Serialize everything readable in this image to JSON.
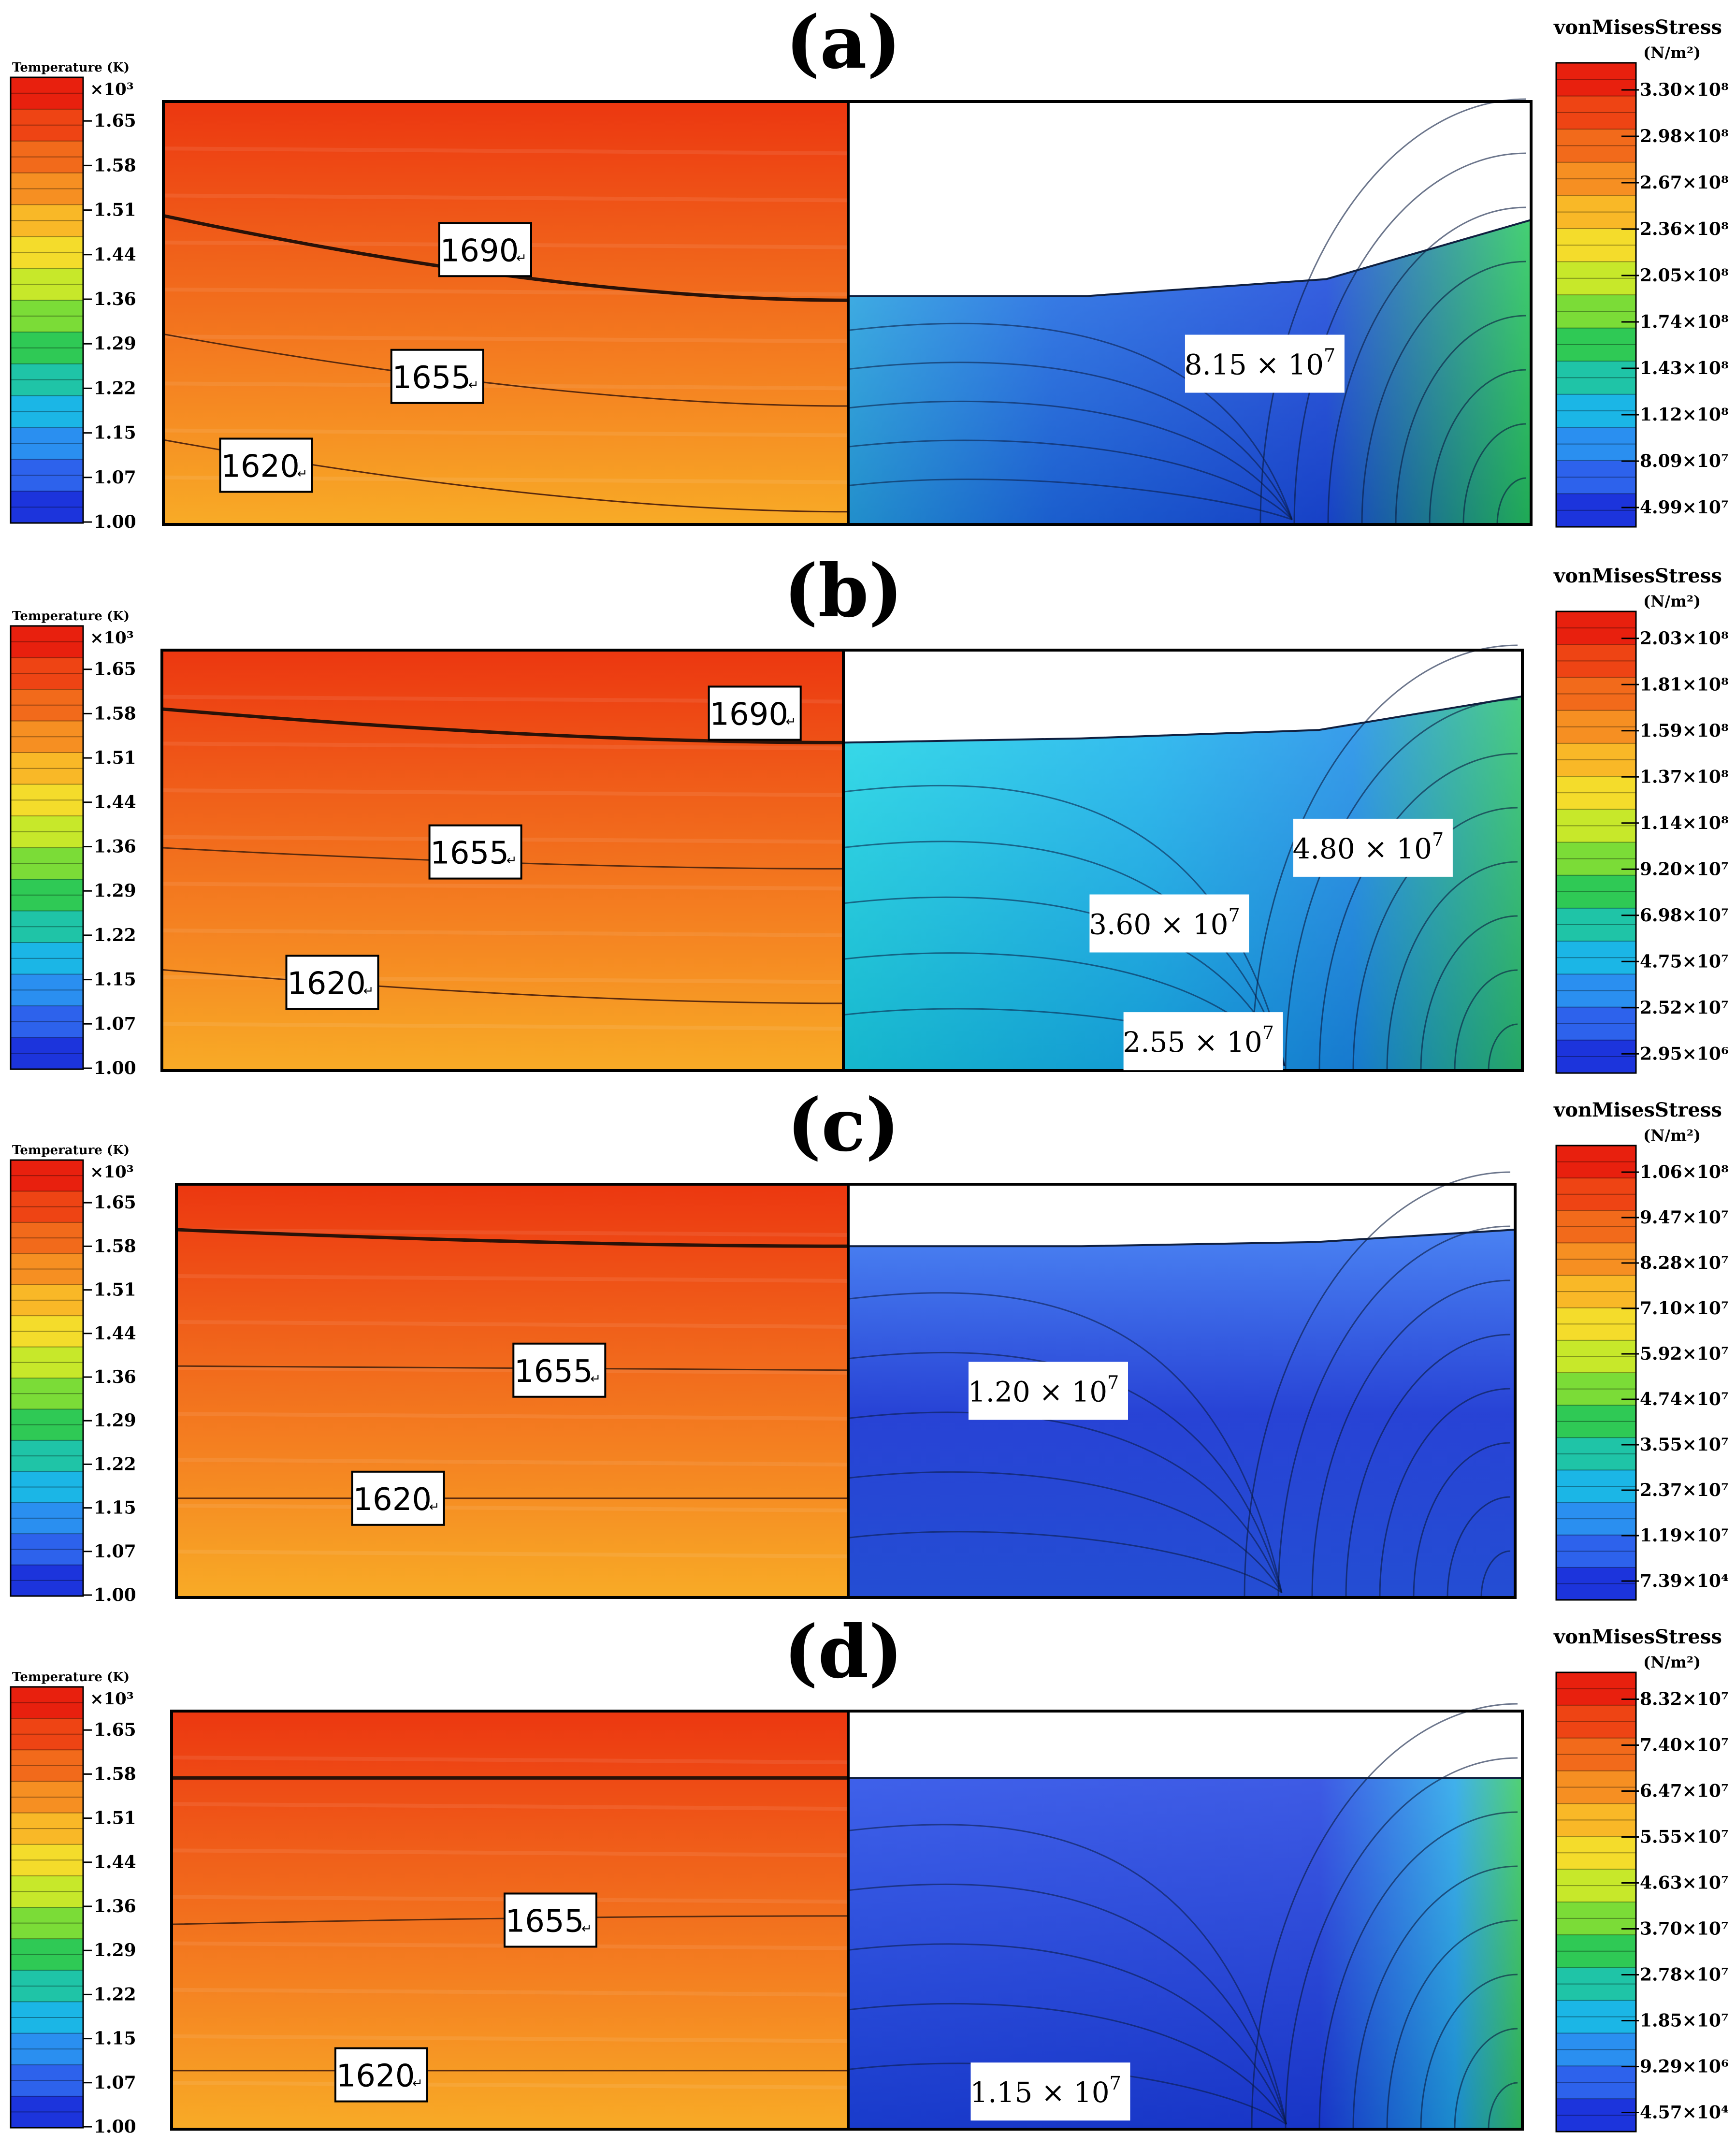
{
  "temperature_colorbar": {
    "title": "Temperature (K)",
    "multiplier": "×10³",
    "ticks": [
      "1.65",
      "1.58",
      "1.51",
      "1.44",
      "1.36",
      "1.29",
      "1.22",
      "1.15",
      "1.07",
      "1.00"
    ]
  },
  "stress_colorbar": {
    "title": "vonMisesStress",
    "unit": "(N/m²)"
  },
  "colors": {
    "hot": "#e8230f",
    "warm": "#f2701c",
    "orange": "#f59a28",
    "cool": "#2f5ff0",
    "deep": "#1a2fd8"
  },
  "panels": [
    {
      "label": "(a)",
      "stress_ticks": [
        "3.30×10⁸",
        "2.98×10⁸",
        "2.67×10⁸",
        "2.36×10⁸",
        "2.05×10⁸",
        "1.74×10⁸",
        "1.43×10⁸",
        "1.12×10⁸",
        "8.09×10⁷",
        "4.99×10⁷"
      ],
      "temp_labels": [
        {
          "text": "1690",
          "mark": "↵"
        },
        {
          "text": "1655",
          "mark": "↵"
        },
        {
          "text": "1620",
          "mark": "↵"
        }
      ],
      "stress_labels": [
        {
          "mant": "8.15 × 10",
          "exp": "7"
        }
      ]
    },
    {
      "label": "(b)",
      "stress_ticks": [
        "2.03×10⁸",
        "1.81×10⁸",
        "1.59×10⁸",
        "1.37×10⁸",
        "1.14×10⁸",
        "9.20×10⁷",
        "6.98×10⁷",
        "4.75×10⁷",
        "2.52×10⁷",
        "2.95×10⁶"
      ],
      "temp_labels": [
        {
          "text": "1690",
          "mark": "↵"
        },
        {
          "text": "1655",
          "mark": "↵"
        },
        {
          "text": "1620",
          "mark": "↵"
        }
      ],
      "stress_labels": [
        {
          "mant": "4.80 × 10",
          "exp": "7"
        },
        {
          "mant": "3.60 × 10",
          "exp": "7"
        },
        {
          "mant": "2.55 × 10",
          "exp": "7"
        }
      ]
    },
    {
      "label": "(c)",
      "stress_ticks": [
        "1.06×10⁸",
        "9.47×10⁷",
        "8.28×10⁷",
        "7.10×10⁷",
        "5.92×10⁷",
        "4.74×10⁷",
        "3.55×10⁷",
        "2.37×10⁷",
        "1.19×10⁷",
        "7.39×10⁴"
      ],
      "temp_labels": [
        {
          "text": "1655",
          "mark": "↵"
        },
        {
          "text": "1620",
          "mark": "↵"
        }
      ],
      "stress_labels": [
        {
          "mant": "1.20 × 10",
          "exp": "7"
        }
      ]
    },
    {
      "label": "(d)",
      "stress_ticks": [
        "8.32×10⁷",
        "7.40×10⁷",
        "6.47×10⁷",
        "5.55×10⁷",
        "4.63×10⁷",
        "3.70×10⁷",
        "2.78×10⁷",
        "1.85×10⁷",
        "9.29×10⁶",
        "4.57×10⁴"
      ],
      "temp_labels": [
        {
          "text": "1655",
          "mark": "↵"
        },
        {
          "text": "1620",
          "mark": "↵"
        }
      ],
      "stress_labels": [
        {
          "mant": "1.15 × 10",
          "exp": "7"
        }
      ]
    }
  ]
}
